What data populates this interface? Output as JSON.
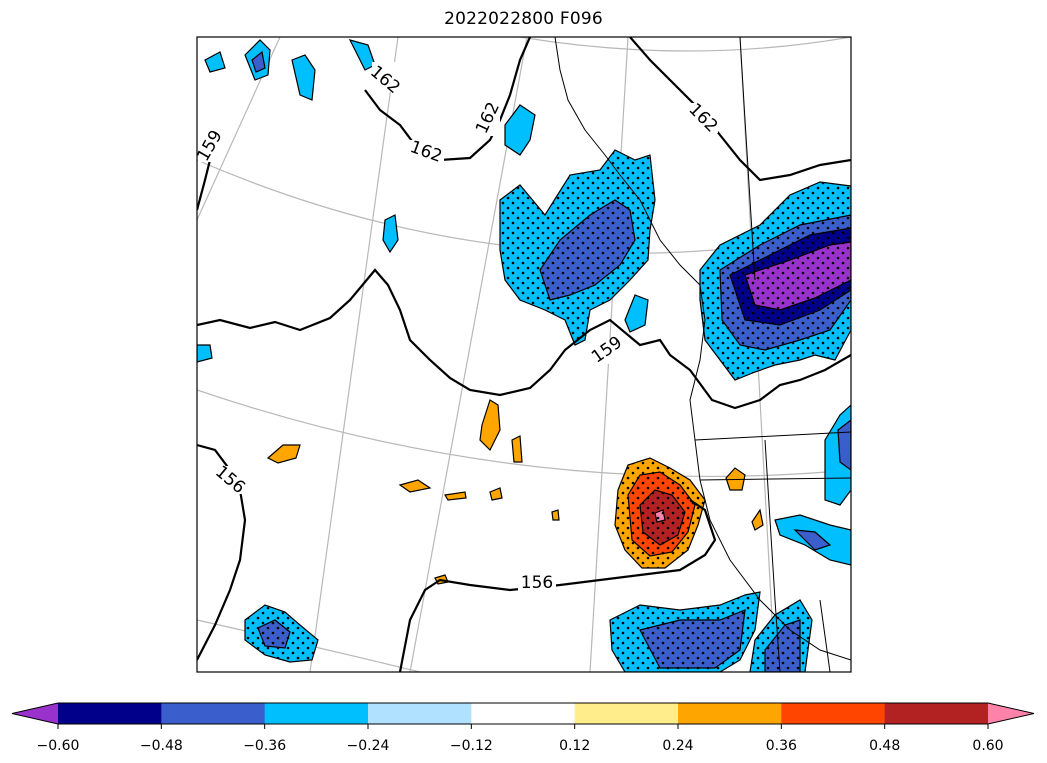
{
  "title": "2022022800 F096",
  "colors": {
    "purple": "#9932cc",
    "navy": "#00008b",
    "royal_blue": "#3a5fcd",
    "deep_sky_blue": "#00bfff",
    "light_sky_blue": "#b0e2ff",
    "white": "#ffffff",
    "light_yellow": "#ffec8b",
    "orange": "#ffa500",
    "orange_red": "#ff4500",
    "firebrick": "#b22222",
    "pink": "#ff82ab"
  },
  "colorbar": {
    "levels": [
      -0.6,
      -0.48,
      -0.36,
      -0.24,
      -0.12,
      0.12,
      0.24,
      0.36,
      0.48,
      0.6
    ],
    "tick_labels": [
      "−0.60",
      "−0.48",
      "−0.36",
      "−0.24",
      "−0.12",
      "0.12",
      "0.24",
      "0.36",
      "0.48",
      "0.60"
    ],
    "bin_colors": [
      "purple",
      "navy",
      "royal_blue",
      "deep_sky_blue",
      "light_sky_blue",
      "white",
      "light_yellow",
      "orange",
      "orange_red",
      "firebrick",
      "pink"
    ],
    "extend": "both"
  },
  "contour_labels": [
    {
      "text": "162",
      "rotation": 40
    },
    {
      "text": "162",
      "rotation": 20
    },
    {
      "text": "162",
      "rotation": -65
    },
    {
      "text": "162",
      "rotation": 45
    },
    {
      "text": "159",
      "rotation": -60
    },
    {
      "text": "159",
      "rotation": -35
    },
    {
      "text": "156",
      "rotation": 40
    },
    {
      "text": "156",
      "rotation": 0
    }
  ]
}
